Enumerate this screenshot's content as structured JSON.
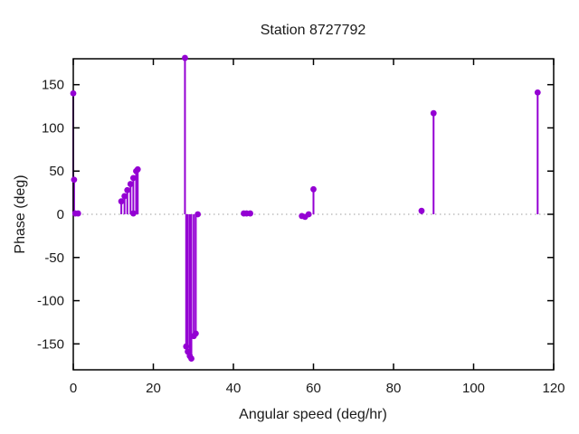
{
  "chart_data": {
    "type": "scatter",
    "subtype": "stem-impulses-with-points",
    "title": "Station 8727792",
    "xlabel": "Angular speed (deg/hr)",
    "ylabel": "Phase (deg)",
    "xlim": [
      0,
      120
    ],
    "ylim": [
      -180,
      180
    ],
    "xticks": [
      0,
      20,
      40,
      60,
      80,
      100,
      120
    ],
    "yticks": [
      -150,
      -100,
      -50,
      0,
      50,
      100,
      150
    ],
    "grid": false,
    "legend": "none",
    "zero_line": true,
    "point_color": "#9400d3",
    "zero_line_color": "#9e9e9e",
    "axis_color": "#000000",
    "points": [
      [
        0,
        140
      ],
      [
        0.2,
        40
      ],
      [
        0.5,
        1
      ],
      [
        1.2,
        1
      ],
      [
        12.0,
        15
      ],
      [
        12.8,
        21
      ],
      [
        13.5,
        28
      ],
      [
        14.3,
        35
      ],
      [
        15.0,
        42
      ],
      [
        15.7,
        50
      ],
      [
        16.1,
        52
      ],
      [
        15.0,
        1
      ],
      [
        27.9,
        181
      ],
      [
        28.2,
        -153
      ],
      [
        28.6,
        -159
      ],
      [
        29.1,
        -164
      ],
      [
        29.5,
        -167
      ],
      [
        30.1,
        -141
      ],
      [
        30.6,
        -138
      ],
      [
        31.1,
        0
      ],
      [
        42.6,
        1
      ],
      [
        43.3,
        1
      ],
      [
        44.2,
        1
      ],
      [
        57.1,
        -2
      ],
      [
        57.9,
        -3
      ],
      [
        58.8,
        0
      ],
      [
        60.0,
        29
      ],
      [
        87.0,
        4
      ],
      [
        90.0,
        117
      ],
      [
        116.0,
        141
      ]
    ]
  }
}
